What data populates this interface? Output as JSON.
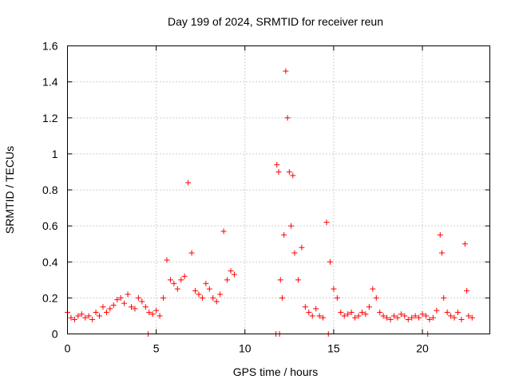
{
  "chart_data": {
    "type": "scatter",
    "title": "Day 199 of 2024, SRMTID for receiver reun",
    "xlabel": "GPS time / hours",
    "ylabel": "SRMTID / TECUs",
    "xlim": [
      0,
      23.8
    ],
    "ylim": [
      0,
      1.6
    ],
    "x_ticks": [
      0,
      5,
      10,
      15,
      20
    ],
    "x_tick_labels": [
      "0",
      "5",
      "10",
      "15",
      "20"
    ],
    "y_ticks": [
      0,
      0.2,
      0.4,
      0.6,
      0.8,
      1.0,
      1.2,
      1.4,
      1.6
    ],
    "y_tick_labels": [
      "0",
      "0.2",
      "0.4",
      "0.6",
      "0.8",
      "1",
      "1.2",
      "1.4",
      "1.6"
    ],
    "grid": true,
    "marker": "+",
    "series": [
      {
        "name": "SRMTID",
        "color": "#ff0000",
        "x": [
          0.0,
          0.2,
          0.4,
          0.6,
          0.8,
          1.0,
          1.2,
          1.4,
          1.6,
          1.8,
          2.0,
          2.2,
          2.4,
          2.6,
          2.8,
          3.0,
          3.2,
          3.4,
          3.6,
          3.8,
          4.0,
          4.2,
          4.4,
          4.6,
          4.8,
          5.0,
          5.2,
          5.4,
          5.6,
          5.8,
          6.0,
          6.2,
          6.4,
          6.6,
          6.8,
          7.0,
          7.2,
          7.4,
          7.6,
          7.8,
          8.0,
          8.2,
          8.4,
          8.6,
          8.8,
          9.0,
          9.2,
          9.4,
          11.8,
          11.9,
          12.0,
          12.1,
          12.2,
          12.3,
          12.4,
          12.5,
          12.6,
          12.7,
          12.8,
          13.0,
          13.2,
          13.4,
          13.6,
          13.8,
          14.0,
          14.2,
          14.4,
          14.6,
          14.8,
          15.0,
          15.2,
          15.4,
          15.6,
          15.8,
          16.0,
          16.2,
          16.4,
          16.6,
          16.8,
          17.0,
          17.2,
          17.4,
          17.6,
          17.8,
          18.0,
          18.2,
          18.4,
          18.6,
          18.8,
          19.0,
          19.2,
          19.4,
          19.6,
          19.8,
          20.0,
          20.2,
          20.4,
          20.6,
          20.8,
          21.0,
          21.1,
          21.2,
          21.4,
          21.6,
          21.8,
          22.0,
          22.2,
          22.4,
          22.5,
          22.6,
          22.8,
          4.55,
          11.75,
          11.95,
          14.7,
          20.3
        ],
        "y": [
          0.12,
          0.09,
          0.08,
          0.1,
          0.11,
          0.09,
          0.1,
          0.08,
          0.12,
          0.1,
          0.15,
          0.12,
          0.14,
          0.16,
          0.19,
          0.2,
          0.17,
          0.22,
          0.15,
          0.14,
          0.2,
          0.18,
          0.15,
          0.12,
          0.11,
          0.13,
          0.1,
          0.2,
          0.41,
          0.3,
          0.28,
          0.25,
          0.3,
          0.32,
          0.84,
          0.45,
          0.24,
          0.22,
          0.2,
          0.28,
          0.25,
          0.2,
          0.18,
          0.22,
          0.57,
          0.3,
          0.35,
          0.33,
          0.94,
          0.9,
          0.3,
          0.2,
          0.55,
          1.46,
          1.2,
          0.9,
          0.6,
          0.88,
          0.45,
          0.3,
          0.48,
          0.15,
          0.12,
          0.1,
          0.14,
          0.1,
          0.09,
          0.62,
          0.4,
          0.25,
          0.2,
          0.12,
          0.1,
          0.11,
          0.12,
          0.09,
          0.1,
          0.12,
          0.11,
          0.15,
          0.25,
          0.2,
          0.12,
          0.1,
          0.09,
          0.08,
          0.1,
          0.09,
          0.11,
          0.1,
          0.08,
          0.09,
          0.1,
          0.09,
          0.11,
          0.1,
          0.08,
          0.09,
          0.13,
          0.55,
          0.45,
          0.2,
          0.12,
          0.1,
          0.09,
          0.12,
          0.08,
          0.5,
          0.24,
          0.1,
          0.09,
          0.0,
          0.0,
          0.0,
          0.0,
          0.0
        ]
      }
    ]
  }
}
